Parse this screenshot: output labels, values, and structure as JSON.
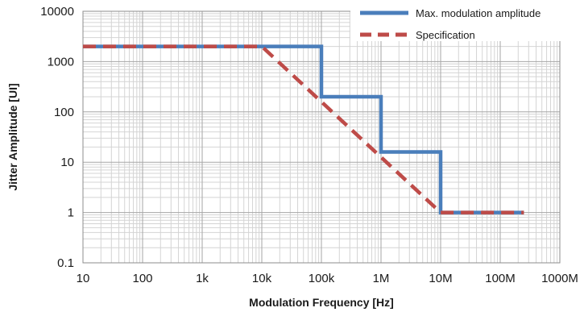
{
  "chart_data": {
    "type": "line",
    "xlabel": "Modulation Frequency [Hz]",
    "ylabel": "Jitter Amplitude [UI]",
    "x_scale": "log",
    "y_scale": "log",
    "xlim": [
      10,
      1000000000
    ],
    "ylim": [
      0.1,
      10000
    ],
    "x_ticks": [
      {
        "value": 10,
        "label": "10"
      },
      {
        "value": 100,
        "label": "100"
      },
      {
        "value": 1000,
        "label": "1k"
      },
      {
        "value": 10000,
        "label": "10k"
      },
      {
        "value": 100000,
        "label": "100k"
      },
      {
        "value": 1000000,
        "label": "1M"
      },
      {
        "value": 10000000,
        "label": "10M"
      },
      {
        "value": 100000000,
        "label": "100M"
      },
      {
        "value": 1000000000,
        "label": "1000M"
      }
    ],
    "y_ticks": [
      {
        "value": 0.1,
        "label": "0.1"
      },
      {
        "value": 1,
        "label": "1"
      },
      {
        "value": 10,
        "label": "10"
      },
      {
        "value": 100,
        "label": "100"
      },
      {
        "value": 1000,
        "label": "1000"
      },
      {
        "value": 10000,
        "label": "10000"
      }
    ],
    "grid": true,
    "legend_position": "top-right",
    "series": [
      {
        "name": "Max. modulation amplitude",
        "color": "#4a7ebb",
        "style": "solid",
        "points": [
          {
            "x": 10,
            "y": 2000
          },
          {
            "x": 100000,
            "y": 2000
          },
          {
            "x": 100000,
            "y": 200
          },
          {
            "x": 1000000,
            "y": 200
          },
          {
            "x": 1000000,
            "y": 16
          },
          {
            "x": 10000000,
            "y": 16
          },
          {
            "x": 10000000,
            "y": 1
          },
          {
            "x": 250000000,
            "y": 1
          }
        ]
      },
      {
        "name": "Specification",
        "color": "#be4b48",
        "style": "dashed",
        "points": [
          {
            "x": 10,
            "y": 2000
          },
          {
            "x": 10000,
            "y": 2000
          },
          {
            "x": 10000000,
            "y": 1
          },
          {
            "x": 250000000,
            "y": 1
          }
        ]
      }
    ]
  }
}
